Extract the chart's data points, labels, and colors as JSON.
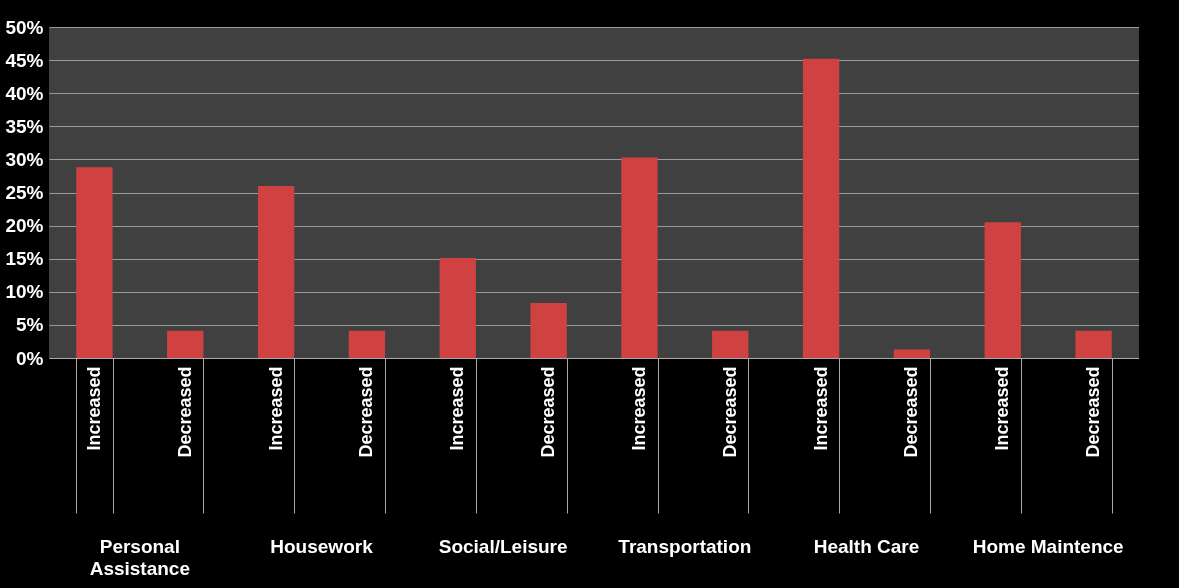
{
  "chart_data": {
    "type": "bar",
    "categories": [
      "Increased",
      "Decreased",
      "Increased",
      "Decreased",
      "Increased",
      "Decreased",
      "Increased",
      "Decreased",
      "Increased",
      "Decreased",
      "Increased",
      "Decreased"
    ],
    "values": [
      28.8,
      4.1,
      26.0,
      4.1,
      15.1,
      8.3,
      30.3,
      4.1,
      45.2,
      1.3,
      20.5,
      4.1
    ],
    "color": "#d04242",
    "ylim": [
      0,
      50
    ],
    "yticks": [
      {
        "value": 0,
        "label": "0%"
      },
      {
        "value": 5,
        "label": "5%"
      },
      {
        "value": 10,
        "label": "10%"
      },
      {
        "value": 15,
        "label": "15%"
      },
      {
        "value": 20,
        "label": "20%"
      },
      {
        "value": 25,
        "label": "25%"
      },
      {
        "value": 30,
        "label": "30%"
      },
      {
        "value": 35,
        "label": "35%"
      },
      {
        "value": 40,
        "label": "40%"
      },
      {
        "value": 45,
        "label": "45%"
      },
      {
        "value": 50,
        "label": "50%"
      }
    ],
    "grid": "y",
    "annotations": [
      "Personal Assistance",
      "Housework",
      "Social/Leisure",
      "Transportation",
      "Health Care",
      "Home Maintence"
    ]
  }
}
